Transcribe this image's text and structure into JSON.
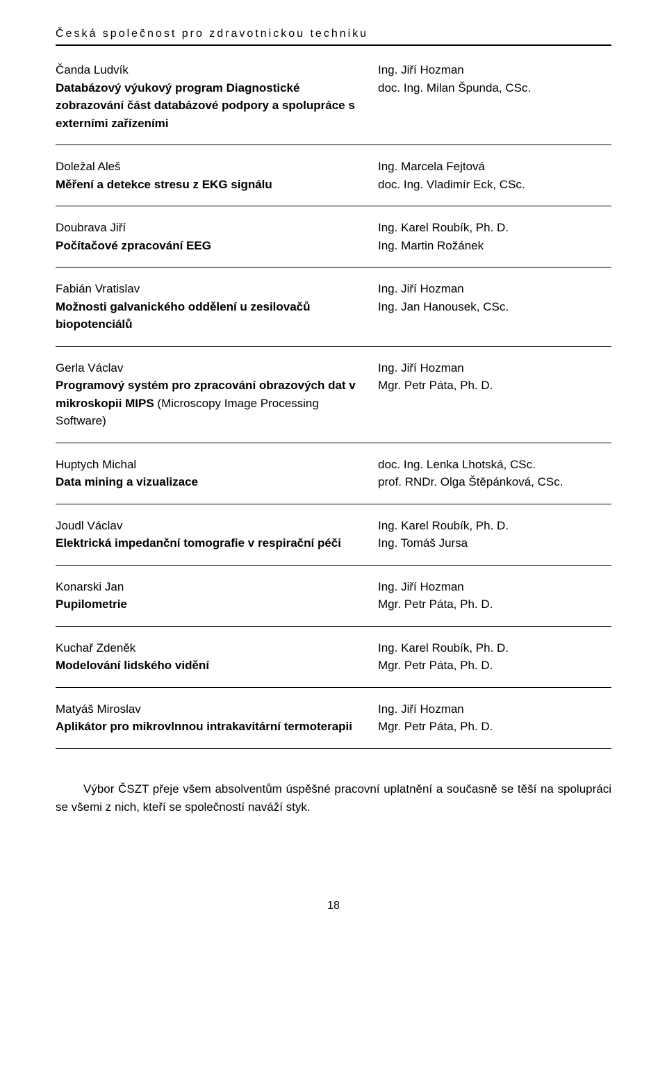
{
  "header": "Česká společnost pro zdravotnickou techniku",
  "entries": [
    {
      "student": "Čanda Ludvík",
      "thesis_bold": "Databázový výukový program Diagnostické zobrazování část databázové podpory a spolupráce s externími zařízeními",
      "thesis_cont": "",
      "sup1": "Ing. Jiří Hozman",
      "sup2": "doc. Ing. Milan Špunda, CSc."
    },
    {
      "student": "Doležal Aleš",
      "thesis_bold": "Měření a detekce stresu z EKG signálu",
      "thesis_cont": "",
      "sup1": "Ing. Marcela Fejtová",
      "sup2": "doc. Ing. Vladimír Eck, CSc."
    },
    {
      "student": "Doubrava Jiří",
      "thesis_bold": "Počítačové zpracování EEG",
      "thesis_cont": "",
      "sup1": "Ing. Karel Roubík, Ph. D.",
      "sup2": "Ing. Martin Rožánek"
    },
    {
      "student": "Fabián Vratislav",
      "thesis_bold": "Možnosti galvanického oddělení u zesilovačů biopotenciálů",
      "thesis_cont": "",
      "sup1": "Ing. Jiří Hozman",
      "sup2": "Ing. Jan Hanousek, CSc."
    },
    {
      "student": "Gerla Václav",
      "thesis_bold": "Programový systém pro zpracování obrazových dat v mikroskopii MIPS",
      "thesis_cont": " (Microscopy Image Processing Software)",
      "sup1": "Ing. Jiří Hozman",
      "sup2": "Mgr. Petr Páta, Ph. D."
    },
    {
      "student": "Huptych Michal",
      "thesis_bold": "Data mining a vizualizace",
      "thesis_cont": "",
      "sup1": "doc. Ing. Lenka Lhotská, CSc.",
      "sup2": "prof. RNDr. Olga Štěpánková, CSc."
    },
    {
      "student": "Joudl Václav",
      "thesis_bold": "Elektrická impedanční tomografie v respirační péči",
      "thesis_cont": "",
      "sup1": "Ing. Karel Roubík, Ph. D.",
      "sup2": "Ing. Tomáš Jursa"
    },
    {
      "student": "Konarski Jan",
      "thesis_bold": "Pupilometrie",
      "thesis_cont": "",
      "sup1": "Ing. Jiří Hozman",
      "sup2": "Mgr. Petr Páta, Ph. D."
    },
    {
      "student": "Kuchař Zdeněk",
      "thesis_bold": "Modelování lidského vidění",
      "thesis_cont": "",
      "sup1": "Ing. Karel Roubík, Ph. D.",
      "sup2": "Mgr. Petr Páta, Ph. D."
    },
    {
      "student": "Matyáš Miroslav",
      "thesis_bold": "Aplikátor pro mikrovlnnou intrakavitární termoterapii",
      "thesis_cont": "",
      "sup1": "Ing. Jiří Hozman",
      "sup2": "Mgr. Petr Páta, Ph. D."
    }
  ],
  "note": "Výbor ČSZT přeje všem absolventům úspěšné pracovní uplatnění a současně se těší na spolupráci se všemi z nich, kteří se společností naváží styk.",
  "page_number": "18"
}
